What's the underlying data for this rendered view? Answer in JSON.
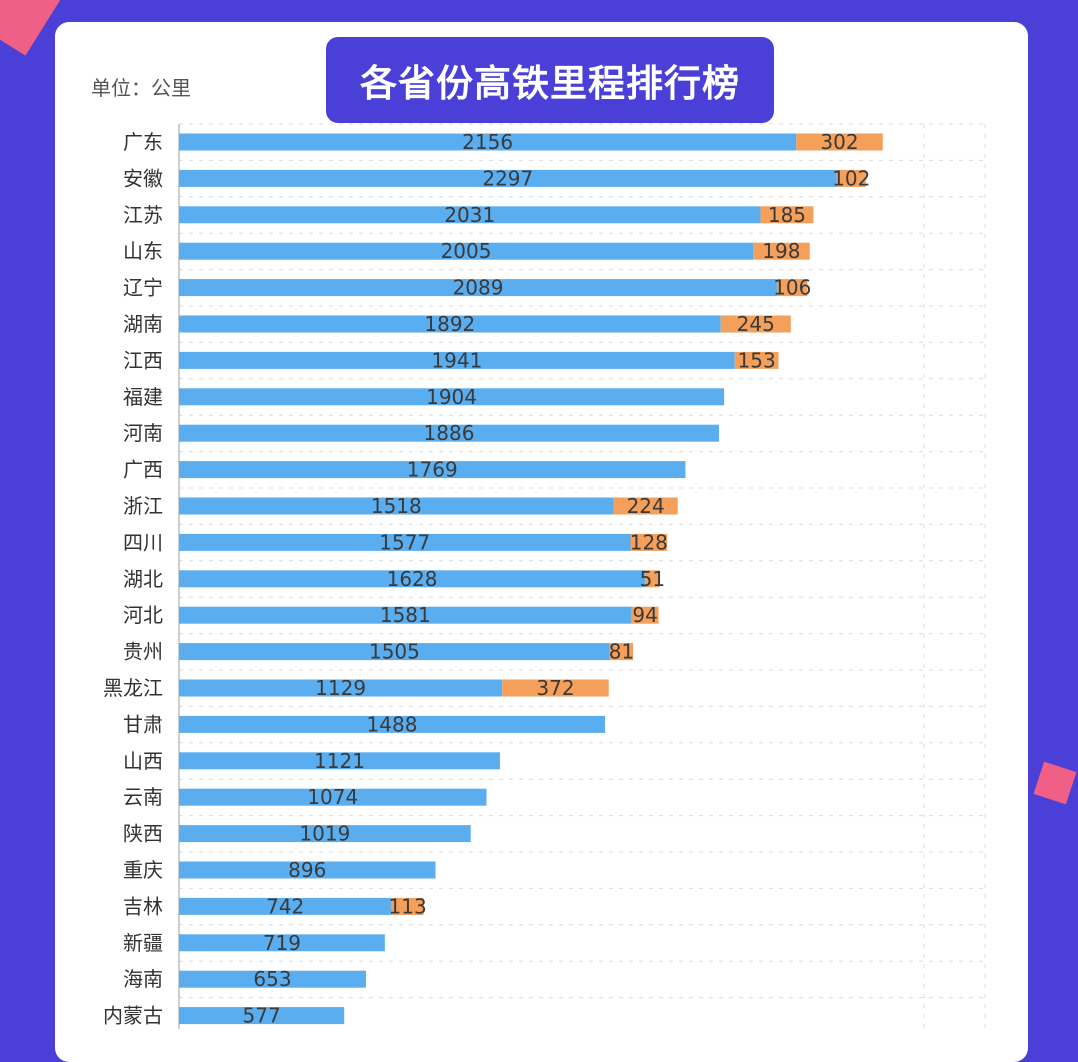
{
  "title": "各省份高铁里程排行榜",
  "unit_label": "单位：公里",
  "colors": {
    "background": "#4a3fd6",
    "bar_primary": "#5aaef0",
    "bar_secondary": "#f4a05a",
    "accent": "#ef5f86"
  },
  "chart_data": {
    "type": "bar",
    "orientation": "horizontal",
    "stacked": true,
    "title": "各省份高铁里程排行榜",
    "unit": "单位：公里",
    "categories": [
      "广东",
      "安徽",
      "江苏",
      "山东",
      "辽宁",
      "湖南",
      "江西",
      "福建",
      "河南",
      "广西",
      "浙江",
      "四川",
      "湖北",
      "河北",
      "贵州",
      "黑龙江",
      "甘肃",
      "山西",
      "云南",
      "陕西",
      "重庆",
      "吉林",
      "新疆",
      "海南",
      "内蒙古"
    ],
    "series": [
      {
        "values": [
          2156,
          2297,
          2031,
          2005,
          2089,
          1892,
          1941,
          1904,
          1886,
          1769,
          1518,
          1577,
          1628,
          1581,
          1505,
          1129,
          1488,
          1121,
          1074,
          1019,
          896,
          742,
          719,
          653,
          577
        ]
      },
      {
        "values": [
          302,
          102,
          185,
          198,
          106,
          245,
          153,
          null,
          null,
          null,
          224,
          128,
          51,
          94,
          81,
          372,
          null,
          null,
          null,
          null,
          null,
          113,
          null,
          null,
          null
        ]
      }
    ],
    "grid": true
  }
}
